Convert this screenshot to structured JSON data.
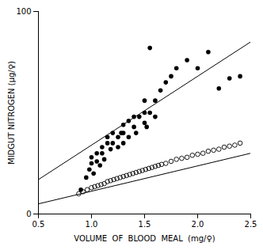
{
  "chart_data": {
    "type": "scatter",
    "xlabel": "VOLUME  OF  BLOOD  MEAL  (mg/♀)",
    "ylabel": "MIDGUT NITROGEN (µg/♀)",
    "xlim": [
      0.5,
      2.5
    ],
    "ylim": [
      0,
      100
    ],
    "xticks": [
      0.5,
      {
        "value": 1.0,
        "label": "1.0"
      },
      1.5,
      {
        "value": 2.0,
        "label": "2.0"
      },
      2.5
    ],
    "yticks": [
      0,
      100
    ],
    "series": [
      {
        "type": "line",
        "color": "#000000",
        "x": [
          0.5,
          2.5
        ],
        "values": [
          17,
          85
        ]
      },
      {
        "type": "line",
        "color": "#000000",
        "x": [
          0.5,
          2.5
        ],
        "values": [
          5,
          30
        ]
      },
      {
        "type": "scatter",
        "marker": "filled_circle",
        "color": "#000000",
        "x": [
          0.95,
          0.98,
          1.0,
          1.0,
          1.02,
          1.05,
          1.05,
          1.08,
          1.1,
          1.1,
          1.12,
          1.15,
          1.15,
          1.18,
          1.2,
          1.2,
          1.25,
          1.25,
          1.28,
          1.3,
          1.3,
          1.3,
          1.35,
          1.35,
          1.4,
          1.4,
          1.42,
          1.45,
          1.5,
          1.5,
          1.5,
          1.52,
          1.55,
          1.6,
          1.6,
          1.65,
          1.7,
          1.75,
          1.8,
          1.9,
          2.0,
          2.1,
          2.2,
          2.3,
          2.4,
          1.55,
          0.9
        ],
        "values": [
          18,
          22,
          25,
          28,
          20,
          26,
          30,
          24,
          30,
          33,
          27,
          35,
          38,
          32,
          35,
          40,
          33,
          38,
          40,
          35,
          40,
          44,
          38,
          46,
          43,
          48,
          40,
          48,
          45,
          50,
          56,
          43,
          50,
          48,
          56,
          61,
          65,
          68,
          72,
          76,
          72,
          80,
          62,
          67,
          68,
          82,
          12
        ]
      },
      {
        "type": "scatter",
        "marker": "open_circle",
        "color": "#000000",
        "x": [
          0.88,
          0.92,
          0.96,
          1.0,
          1.03,
          1.06,
          1.09,
          1.12,
          1.15,
          1.18,
          1.21,
          1.24,
          1.27,
          1.3,
          1.33,
          1.36,
          1.39,
          1.42,
          1.45,
          1.48,
          1.51,
          1.54,
          1.57,
          1.6,
          1.63,
          1.66,
          1.7,
          1.75,
          1.8,
          1.85,
          1.9,
          1.95,
          2.0,
          2.05,
          2.1,
          2.15,
          2.2,
          2.25,
          2.3,
          2.35,
          2.4
        ],
        "values": [
          10,
          11,
          12,
          13,
          13.5,
          14,
          14.5,
          15,
          16,
          16.5,
          17,
          17.5,
          18,
          18.5,
          19,
          19.5,
          20,
          20.5,
          21,
          21.5,
          22,
          22.5,
          23,
          23.5,
          24,
          24.5,
          25,
          26,
          27,
          27.5,
          28,
          29,
          29.5,
          30,
          31,
          31.5,
          32,
          33,
          33.5,
          34,
          35
        ]
      }
    ]
  }
}
